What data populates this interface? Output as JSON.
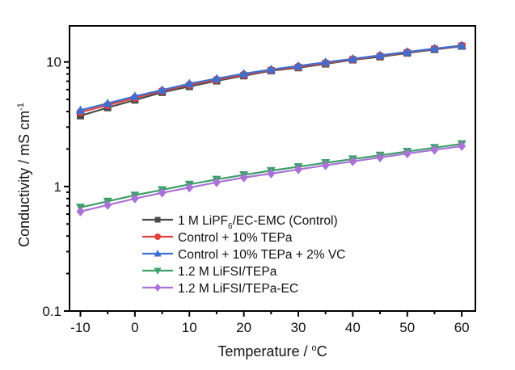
{
  "chart_data": {
    "type": "line",
    "title": "",
    "xlabel": "Temperature / °C",
    "ylabel": "Conductivity / mS cm⁻¹",
    "ylabel_parts": {
      "main": "Conductivity / mS cm",
      "sup": "-1"
    },
    "xlabel_parts": {
      "main": "Temperature / ",
      "sup": "o",
      "tail": "C"
    },
    "xlim": [
      -12,
      62.5
    ],
    "ylim": [
      0.1,
      19.5
    ],
    "yscale": "log",
    "grid": false,
    "legend_position": "lower-left",
    "x_ticks": [
      -10,
      0,
      10,
      20,
      30,
      40,
      50,
      60
    ],
    "x_tick_labels": [
      "-10",
      "0",
      "10",
      "20",
      "30",
      "40",
      "50",
      "60"
    ],
    "y_ticks": [
      0.1,
      1,
      10
    ],
    "y_tick_labels": [
      "0.1",
      "1",
      "10"
    ],
    "x": [
      -10,
      -5,
      0,
      5,
      10,
      15,
      20,
      25,
      30,
      35,
      40,
      45,
      50,
      55,
      60
    ],
    "series": [
      {
        "name": "1 M LiPF6/EC-EMC (Control)",
        "legend_parts": {
          "main": "1 M LiPF",
          "sub": "6",
          "tail": "/EC-EMC (Control)"
        },
        "color": "#4a4a4a",
        "marker": "square",
        "values": [
          3.7,
          4.3,
          4.95,
          5.7,
          6.35,
          7.05,
          7.75,
          8.5,
          9.0,
          9.65,
          10.4,
          11.0,
          11.8,
          12.6,
          13.4
        ]
      },
      {
        "name": "Control + 10% TEPa",
        "color": "#e0413f",
        "marker": "circle",
        "values": [
          3.95,
          4.5,
          5.15,
          5.85,
          6.55,
          7.2,
          7.9,
          8.6,
          9.15,
          9.8,
          10.5,
          11.2,
          11.95,
          12.75,
          13.5
        ]
      },
      {
        "name": "Control + 10% TEPa + 2% VC",
        "color": "#3b6fd1",
        "marker": "triangle-up",
        "values": [
          4.1,
          4.65,
          5.3,
          5.95,
          6.7,
          7.35,
          8.05,
          8.7,
          9.3,
          9.95,
          10.6,
          11.3,
          12.05,
          12.8,
          13.55
        ]
      },
      {
        "name": "1.2 M LiFSI/TEPa",
        "color": "#3e9e6a",
        "marker": "triangle-down",
        "values": [
          0.68,
          0.76,
          0.85,
          0.94,
          1.04,
          1.14,
          1.24,
          1.34,
          1.44,
          1.55,
          1.66,
          1.78,
          1.91,
          2.05,
          2.2
        ]
      },
      {
        "name": "1.2 M LiFSI/TEPa-EC",
        "color": "#a972d6",
        "marker": "diamond",
        "values": [
          0.63,
          0.71,
          0.8,
          0.89,
          0.98,
          1.08,
          1.18,
          1.27,
          1.37,
          1.48,
          1.59,
          1.71,
          1.84,
          1.97,
          2.11
        ]
      }
    ]
  }
}
